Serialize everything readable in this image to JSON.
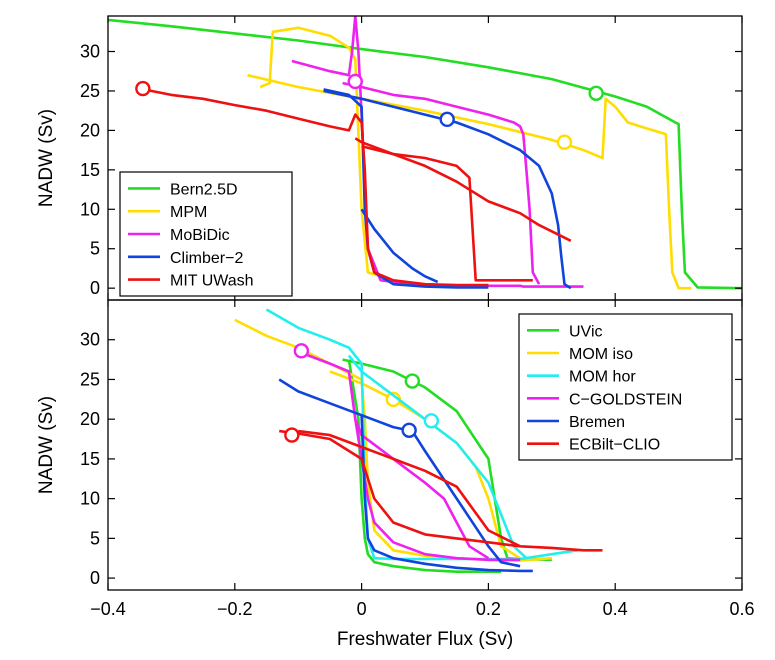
{
  "figure": {
    "xlabel": "Freshwater Flux (Sv)",
    "x_ticks": [
      "−0.4",
      "−0.2",
      "0",
      "0.2",
      "0.4",
      "0.6"
    ],
    "y_ticks": [
      "0",
      "5",
      "10",
      "15",
      "20",
      "25",
      "30"
    ]
  },
  "chart_data": [
    {
      "type": "line",
      "ylabel": "NADW (Sv)",
      "xlim": [
        -0.4,
        0.6
      ],
      "ylim": [
        -1.5,
        34.5
      ],
      "grid": false,
      "legend_position": "center-left",
      "series": [
        {
          "name": "Bern2.5D",
          "color": "#22dd22",
          "x": [
            -0.4,
            -0.3,
            -0.2,
            -0.1,
            0.0,
            0.1,
            0.2,
            0.3,
            0.4,
            0.45,
            0.495,
            0.5,
            0.505,
            0.51,
            0.53,
            0.6
          ],
          "y": [
            34.0,
            33.2,
            32.3,
            31.4,
            30.3,
            29.3,
            28.0,
            26.5,
            24.3,
            23.0,
            21.0,
            20.8,
            10.0,
            2.0,
            0.1,
            0.0
          ],
          "marker": {
            "x": 0.37,
            "y": 24.7
          }
        },
        {
          "name": "MPM",
          "color": "#ffdd00",
          "x": [
            -0.18,
            -0.1,
            0.0,
            0.1,
            0.2,
            0.3,
            0.35,
            0.38,
            0.385,
            0.4,
            0.42,
            0.46,
            0.48,
            0.485,
            0.49,
            0.5,
            0.52
          ],
          "y": [
            27.0,
            25.5,
            24.0,
            22.5,
            20.8,
            18.8,
            17.5,
            16.5,
            24.0,
            23.0,
            21.0,
            20.0,
            19.5,
            10.0,
            2.0,
            0.0,
            0.0
          ],
          "upper_x": [
            -0.16,
            -0.145,
            -0.14,
            -0.1,
            -0.05,
            -0.02,
            -0.01,
            0.0,
            0.01,
            0.05
          ],
          "upper_y": [
            25.5,
            26.0,
            32.5,
            33.0,
            32.0,
            30.5,
            29.0,
            10.0,
            2.0,
            1.0
          ],
          "marker": {
            "x": 0.32,
            "y": 18.5
          }
        },
        {
          "name": "MoBiDic",
          "color": "#ee22ee",
          "x": [
            -0.11,
            -0.05,
            -0.02,
            -0.015,
            -0.01,
            -0.005,
            0.0,
            0.01,
            0.03,
            0.1,
            0.2,
            0.25,
            0.255,
            0.26,
            0.27,
            0.28,
            0.35
          ],
          "y": [
            28.8,
            27.5,
            27.0,
            30.0,
            34.5,
            30.0,
            22.0,
            5.0,
            1.0,
            0.3,
            0.3,
            0.3,
            0.2,
            0.2,
            0.2,
            0.2,
            0.2
          ],
          "upper_x": [
            -0.03,
            0.0,
            0.05,
            0.1,
            0.15,
            0.2,
            0.24,
            0.25,
            0.255,
            0.26,
            0.265,
            0.27,
            0.28
          ],
          "upper_y": [
            26.0,
            25.5,
            24.5,
            24.0,
            23.0,
            22.0,
            21.0,
            20.5,
            19.5,
            15.0,
            10.0,
            2.0,
            0.5
          ],
          "marker": {
            "x": -0.01,
            "y": 26.2
          }
        },
        {
          "name": "Climber−2",
          "color": "#1144dd",
          "x": [
            -0.06,
            -0.02,
            0.0,
            0.005,
            0.01,
            0.02,
            0.05,
            0.1,
            0.15,
            0.2
          ],
          "y": [
            25.2,
            24.5,
            23.0,
            10.0,
            5.0,
            2.0,
            0.5,
            0.2,
            0.1,
            0.1
          ],
          "upper_x": [
            -0.06,
            0.0,
            0.05,
            0.1,
            0.15,
            0.2,
            0.25,
            0.28,
            0.3,
            0.31,
            0.315,
            0.32,
            0.33
          ],
          "upper_y": [
            25.0,
            24.0,
            23.0,
            22.0,
            21.0,
            19.5,
            17.5,
            15.5,
            12.0,
            8.0,
            4.0,
            0.5,
            0.0
          ],
          "lower_x": [
            0.0,
            0.02,
            0.05,
            0.08,
            0.1,
            0.12
          ],
          "lower_y": [
            10.0,
            7.5,
            4.5,
            2.5,
            1.5,
            0.8
          ],
          "marker": {
            "x": 0.135,
            "y": 21.4
          }
        },
        {
          "name": "MIT UWash",
          "color": "#ee1111",
          "x": [
            -0.35,
            -0.3,
            -0.25,
            -0.2,
            -0.15,
            -0.1,
            -0.05,
            -0.02,
            -0.01,
            0.0,
            0.005,
            0.01,
            0.02,
            0.05,
            0.1,
            0.15,
            0.2
          ],
          "y": [
            25.3,
            24.5,
            24.0,
            23.2,
            22.5,
            21.5,
            20.5,
            20.0,
            22.0,
            21.0,
            15.0,
            5.0,
            2.0,
            1.0,
            0.5,
            0.4,
            0.4
          ],
          "upper_x": [
            -0.01,
            0.0,
            0.05,
            0.1,
            0.15,
            0.2,
            0.25,
            0.28,
            0.33
          ],
          "upper_y": [
            19.0,
            18.5,
            17.0,
            15.5,
            13.5,
            11.0,
            9.5,
            8.0,
            6.0
          ],
          "lower_x": [
            0.0,
            0.05,
            0.1,
            0.15,
            0.17,
            0.18,
            0.2,
            0.25,
            0.27
          ],
          "lower_y": [
            18.0,
            17.0,
            16.5,
            15.5,
            14.0,
            1.0,
            1.0,
            1.0,
            1.0
          ],
          "marker": {
            "x": -0.345,
            "y": 25.3
          }
        }
      ]
    },
    {
      "type": "line",
      "ylabel": "NADW (Sv)",
      "xlim": [
        -0.4,
        0.6
      ],
      "ylim": [
        -1.5,
        35.0
      ],
      "grid": false,
      "legend_position": "top-right",
      "series": [
        {
          "name": "UVic",
          "color": "#22dd22",
          "x": [
            -0.03,
            0.0,
            0.05,
            0.1,
            0.15,
            0.2,
            0.21,
            0.22,
            0.23,
            0.25,
            0.3
          ],
          "y": [
            27.5,
            27.0,
            26.0,
            24.0,
            21.0,
            15.0,
            10.0,
            5.0,
            2.5,
            2.4,
            2.3
          ],
          "lower_x": [
            -0.02,
            -0.005,
            0.0,
            0.005,
            0.01,
            0.02,
            0.05,
            0.1,
            0.15,
            0.2,
            0.22
          ],
          "lower_y": [
            27.5,
            20.0,
            10.0,
            5.0,
            3.0,
            2.0,
            1.5,
            1.0,
            0.8,
            0.8,
            0.8
          ],
          "marker": {
            "x": 0.08,
            "y": 24.8
          }
        },
        {
          "name": "MOM iso",
          "color": "#ffdd00",
          "x": [
            -0.2,
            -0.15,
            -0.1,
            -0.05,
            0.0,
            0.005,
            0.01,
            0.02,
            0.05,
            0.1,
            0.15,
            0.2,
            0.22,
            0.25,
            0.3
          ],
          "y": [
            32.5,
            30.5,
            29.0,
            27.0,
            25.0,
            20.0,
            12.0,
            6.0,
            3.5,
            2.8,
            2.5,
            2.3,
            2.2,
            2.2,
            2.5
          ],
          "upper_x": [
            -0.05,
            0.0,
            0.05,
            0.1,
            0.15,
            0.18,
            0.2,
            0.22,
            0.25
          ],
          "upper_y": [
            26.0,
            24.5,
            22.5,
            20.0,
            17.0,
            14.0,
            10.0,
            4.0,
            2.5
          ],
          "marker": {
            "x": 0.05,
            "y": 22.5
          }
        },
        {
          "name": "MOM hor",
          "color": "#22eeee",
          "x": [
            -0.15,
            -0.1,
            -0.05,
            -0.02,
            0.0,
            0.005,
            0.01,
            0.02,
            0.05,
            0.1,
            0.2,
            0.25,
            0.3,
            0.34
          ],
          "y": [
            33.8,
            31.5,
            30.0,
            29.0,
            27.0,
            12.0,
            5.0,
            2.5,
            2.4,
            2.4,
            2.4,
            2.4,
            3.0,
            3.5
          ],
          "upper_x": [
            -0.02,
            0.0,
            0.05,
            0.1,
            0.15,
            0.2,
            0.22,
            0.24,
            0.26
          ],
          "upper_y": [
            28.0,
            26.0,
            23.0,
            20.0,
            17.0,
            12.0,
            8.0,
            4.0,
            2.5
          ],
          "marker": {
            "x": 0.11,
            "y": 19.8
          }
        },
        {
          "name": "C−GOLDSTEIN",
          "color": "#ee22ee",
          "x": [
            -0.1,
            -0.05,
            -0.02,
            -0.01,
            0.0,
            0.01,
            0.02,
            0.05,
            0.1,
            0.15,
            0.2,
            0.25
          ],
          "y": [
            28.5,
            27.0,
            26.0,
            20.0,
            15.0,
            10.0,
            7.0,
            4.5,
            3.0,
            2.5,
            2.3,
            2.3
          ],
          "upper_x": [
            -0.01,
            0.0,
            0.05,
            0.1,
            0.13,
            0.15,
            0.17,
            0.2
          ],
          "upper_y": [
            20.0,
            18.0,
            15.0,
            12.0,
            10.0,
            7.0,
            4.0,
            2.5
          ],
          "marker": {
            "x": -0.095,
            "y": 28.6
          }
        },
        {
          "name": "Bremen",
          "color": "#1144dd",
          "x": [
            -0.13,
            -0.1,
            -0.05,
            0.0,
            0.005,
            0.01,
            0.02,
            0.05,
            0.1,
            0.15,
            0.2,
            0.25,
            0.27
          ],
          "y": [
            25.0,
            23.5,
            22.0,
            20.5,
            10.0,
            5.0,
            3.5,
            2.5,
            1.8,
            1.3,
            1.0,
            0.9,
            0.9
          ],
          "upper_x": [
            0.0,
            0.05,
            0.08,
            0.1,
            0.15,
            0.2,
            0.22,
            0.25
          ],
          "upper_y": [
            20.5,
            19.0,
            18.5,
            16.0,
            10.0,
            4.0,
            2.0,
            1.5
          ],
          "marker": {
            "x": 0.075,
            "y": 18.6
          }
        },
        {
          "name": "ECBilt−CLIO",
          "color": "#ee1111",
          "x": [
            -0.13,
            -0.1,
            -0.05,
            0.0,
            0.02,
            0.05,
            0.1,
            0.15,
            0.2,
            0.25,
            0.3,
            0.35,
            0.38
          ],
          "y": [
            18.5,
            18.2,
            17.5,
            15.0,
            10.0,
            7.0,
            5.5,
            5.0,
            4.5,
            4.0,
            3.8,
            3.5,
            3.5
          ],
          "upper_x": [
            -0.1,
            -0.05,
            0.0,
            0.05,
            0.1,
            0.15,
            0.2,
            0.25
          ],
          "upper_y": [
            18.5,
            18.0,
            16.5,
            15.0,
            13.5,
            11.5,
            6.0,
            4.0
          ],
          "marker": {
            "x": -0.11,
            "y": 18.0
          }
        }
      ]
    }
  ]
}
